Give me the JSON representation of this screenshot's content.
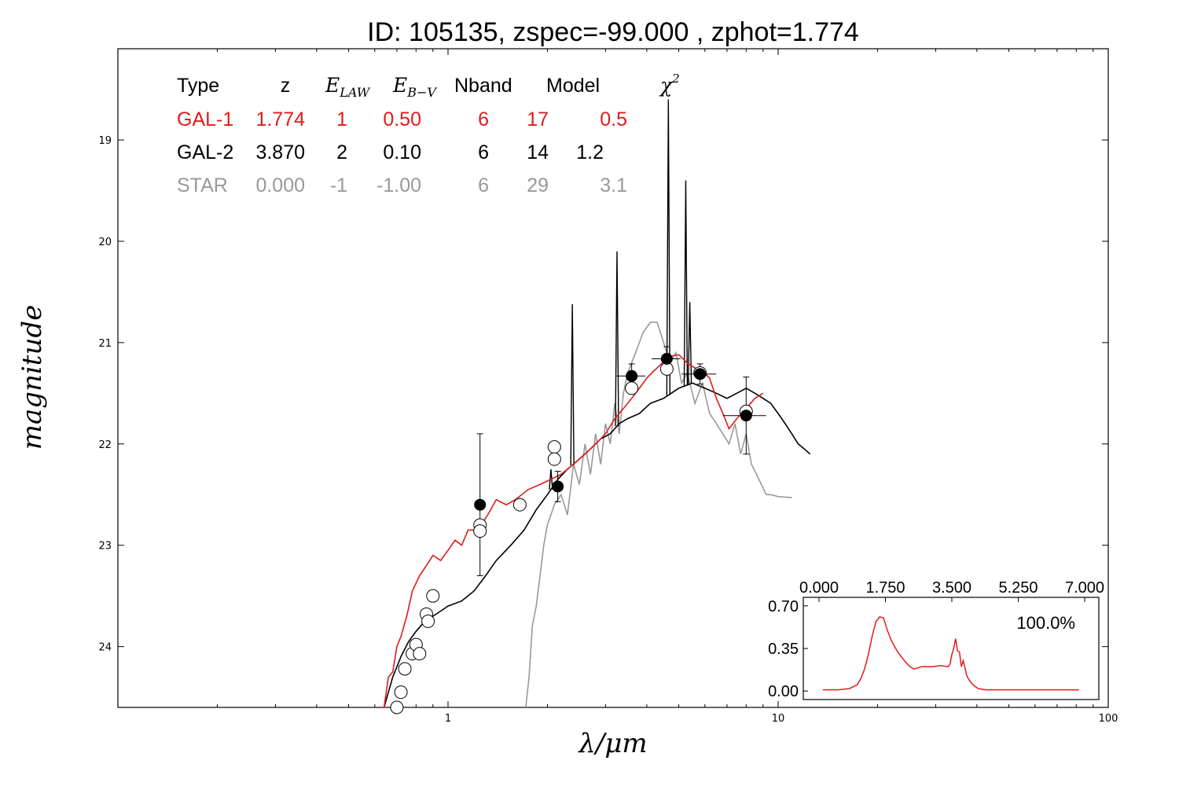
{
  "chart_data": {
    "type": "line",
    "title": "ID:  105135, zspec=-99.000 , zphot=1.774",
    "xlabel": "λ/μm",
    "ylabel": "magnitude",
    "xscale": "log",
    "xlim": [
      0.1,
      100
    ],
    "ylim": [
      24.6,
      18.1
    ],
    "y_inverted": true,
    "x_ticks": [
      "1",
      "10",
      "100"
    ],
    "y_ticks": [
      "19",
      "20",
      "21",
      "22",
      "23",
      "24"
    ],
    "colors": {
      "gal1": "#e31a1c",
      "gal2": "#000000",
      "star": "#999999"
    },
    "table": {
      "headers": [
        "Type",
        "z",
        "E_LAW",
        "E_B-V",
        "Nband",
        "Model",
        "χ²"
      ],
      "rows": [
        {
          "type": "GAL-1",
          "z": "1.774",
          "elaw": "1",
          "ebv": "0.50",
          "nband": "6",
          "model": "17",
          "chi2": "0.5",
          "color": "#e31a1c"
        },
        {
          "type": "GAL-2",
          "z": "3.870",
          "elaw": "2",
          "ebv": "0.10",
          "nband": "6",
          "model": "14",
          "chi2": "1.2",
          "color": "#000000"
        },
        {
          "type": "STAR",
          "z": "0.000",
          "elaw": "-1",
          "ebv": "-1.00",
          "nband": "6",
          "model": "29",
          "chi2": "3.1",
          "color": "#999999"
        }
      ]
    },
    "series": [
      {
        "name": "GAL-1",
        "color": "#e31a1c",
        "x": [
          0.64,
          0.66,
          0.68,
          0.7,
          0.72,
          0.75,
          0.78,
          0.82,
          0.86,
          0.9,
          0.95,
          1.0,
          1.05,
          1.1,
          1.15,
          1.2,
          1.26,
          1.32,
          1.4,
          1.5,
          1.6,
          1.75,
          1.9,
          2.05,
          2.2,
          2.4,
          2.6,
          2.8,
          3.0,
          3.2,
          3.4,
          3.6,
          3.8,
          4.0,
          4.2,
          4.4,
          4.6,
          4.8,
          5.0,
          5.3,
          5.6,
          5.9,
          6.2,
          6.5,
          6.8,
          7.1,
          7.5,
          8.0,
          8.5,
          9.0
        ],
        "y": [
          24.6,
          24.3,
          24.25,
          24.0,
          23.9,
          23.7,
          23.45,
          23.3,
          23.2,
          23.1,
          23.15,
          23.05,
          22.95,
          23.0,
          22.85,
          22.85,
          22.8,
          22.7,
          22.55,
          22.6,
          22.55,
          22.45,
          22.4,
          22.35,
          22.3,
          22.2,
          22.1,
          22.0,
          21.9,
          21.75,
          21.65,
          21.55,
          21.45,
          21.35,
          21.28,
          21.22,
          21.15,
          21.13,
          21.12,
          21.2,
          21.25,
          21.28,
          21.35,
          21.55,
          21.7,
          21.85,
          21.75,
          21.65,
          21.55,
          21.5
        ]
      },
      {
        "name": "GAL-2",
        "color": "#000000",
        "x": [
          0.64,
          0.68,
          0.72,
          0.76,
          0.8,
          0.85,
          0.9,
          0.95,
          1.0,
          1.1,
          1.2,
          1.3,
          1.4,
          1.55,
          1.7,
          1.85,
          2.0,
          2.15,
          2.3,
          2.5,
          2.7,
          2.9,
          3.1,
          3.3,
          3.5,
          3.8,
          4.1,
          4.5,
          5.0,
          5.5,
          6.0,
          6.5,
          7.0,
          7.5,
          8.0,
          8.5,
          9.0,
          9.5,
          10.0,
          10.5,
          11.0,
          11.5,
          12.0,
          12.5
        ],
        "y": [
          24.6,
          24.3,
          24.1,
          23.95,
          23.85,
          23.75,
          23.7,
          23.65,
          23.6,
          23.55,
          23.45,
          23.3,
          23.15,
          23.0,
          22.85,
          22.65,
          22.5,
          22.35,
          22.25,
          22.15,
          22.05,
          21.95,
          21.9,
          21.8,
          21.75,
          21.7,
          21.6,
          21.55,
          21.45,
          21.4,
          21.45,
          21.5,
          21.55,
          21.5,
          21.45,
          21.5,
          21.55,
          21.6,
          21.7,
          21.8,
          21.9,
          22.0,
          22.05,
          22.1
        ],
        "spikes": [
          {
            "x": 2.05,
            "peak": 22.25
          },
          {
            "x": 2.38,
            "peak": 20.62
          },
          {
            "x": 3.25,
            "peak": 20.1
          },
          {
            "x": 4.65,
            "peak": 18.6
          },
          {
            "x": 5.25,
            "peak": 19.4
          },
          {
            "x": 5.4,
            "peak": 20.6
          }
        ]
      },
      {
        "name": "STAR",
        "color": "#999999",
        "x": [
          1.72,
          1.76,
          1.8,
          1.85,
          1.9,
          1.95,
          2.0,
          2.1,
          2.2,
          2.3,
          2.4,
          2.5,
          2.6,
          2.7,
          2.8,
          2.9,
          3.0,
          3.1,
          3.2,
          3.3,
          3.4,
          3.5,
          3.7,
          3.9,
          4.1,
          4.3,
          4.5,
          4.7,
          4.9,
          5.1,
          5.3,
          5.6,
          5.9,
          6.2,
          6.5,
          6.8,
          7.1,
          7.4,
          7.7,
          8.0,
          8.3,
          8.6,
          8.9,
          9.2,
          9.5,
          10.0,
          11.0
        ],
        "y": [
          24.6,
          24.3,
          23.8,
          23.6,
          23.3,
          23.0,
          22.8,
          22.6,
          22.5,
          22.7,
          22.2,
          22.4,
          22.0,
          22.3,
          21.9,
          22.2,
          21.8,
          22.0,
          21.6,
          21.9,
          21.5,
          21.3,
          21.1,
          20.9,
          20.8,
          20.8,
          21.0,
          21.2,
          21.1,
          21.4,
          21.3,
          21.6,
          21.4,
          21.7,
          21.8,
          21.9,
          22.0,
          21.8,
          22.1,
          21.9,
          22.2,
          22.3,
          22.4,
          22.5,
          22.5,
          22.52,
          22.53
        ]
      }
    ],
    "observed_points": {
      "x": [
        1.25,
        2.15,
        3.6,
        4.6,
        5.8,
        8.0
      ],
      "y": [
        22.6,
        22.42,
        21.33,
        21.16,
        21.31,
        21.72
      ],
      "yerr_low": [
        0.7,
        0.15,
        0.12,
        0.12,
        0.1,
        0.38
      ],
      "yerr_high": [
        0.7,
        0.15,
        0.12,
        0.12,
        0.1,
        0.38
      ],
      "xerr_frac": [
        0.03,
        0.03,
        0.1,
        0.1,
        0.12,
        0.15
      ]
    },
    "model_points": {
      "x": [
        0.7,
        0.72,
        0.74,
        0.78,
        0.8,
        0.82,
        0.86,
        0.87,
        0.9,
        1.25,
        1.25,
        1.65,
        2.1,
        2.1,
        3.6,
        4.6,
        5.8,
        8.0
      ],
      "y": [
        24.6,
        24.45,
        24.22,
        24.07,
        23.98,
        24.07,
        23.68,
        23.75,
        23.5,
        22.8,
        22.86,
        22.6,
        22.03,
        22.15,
        21.45,
        21.26,
        21.3,
        21.68
      ]
    },
    "inset": {
      "type": "line",
      "x_ticks": [
        "0.000",
        "1.750",
        "3.500",
        "5.250",
        "7.000"
      ],
      "y_ticks": [
        "0.70",
        "0.35",
        "0.00"
      ],
      "xlim": [
        0,
        7
      ],
      "ylim": [
        -0.07,
        0.77
      ],
      "annotation": "100.0%",
      "series": {
        "color": "#e31a1c",
        "x": [
          0.1,
          0.5,
          0.8,
          1.0,
          1.1,
          1.2,
          1.3,
          1.4,
          1.5,
          1.6,
          1.7,
          1.8,
          1.9,
          2.0,
          2.1,
          2.2,
          2.3,
          2.4,
          2.5,
          2.6,
          2.7,
          2.8,
          3.0,
          3.2,
          3.4,
          3.45,
          3.5,
          3.55,
          3.6,
          3.65,
          3.7,
          3.75,
          3.8,
          3.9,
          4.0,
          4.1,
          4.2,
          4.4,
          4.6,
          5.0,
          6.0,
          6.85
        ],
        "y": [
          0.01,
          0.01,
          0.02,
          0.05,
          0.1,
          0.18,
          0.3,
          0.45,
          0.57,
          0.61,
          0.6,
          0.5,
          0.42,
          0.36,
          0.31,
          0.27,
          0.23,
          0.2,
          0.18,
          0.19,
          0.2,
          0.2,
          0.2,
          0.21,
          0.2,
          0.22,
          0.3,
          0.35,
          0.43,
          0.33,
          0.32,
          0.2,
          0.25,
          0.12,
          0.07,
          0.04,
          0.02,
          0.01,
          0.01,
          0.01,
          0.01,
          0.01
        ]
      }
    }
  }
}
